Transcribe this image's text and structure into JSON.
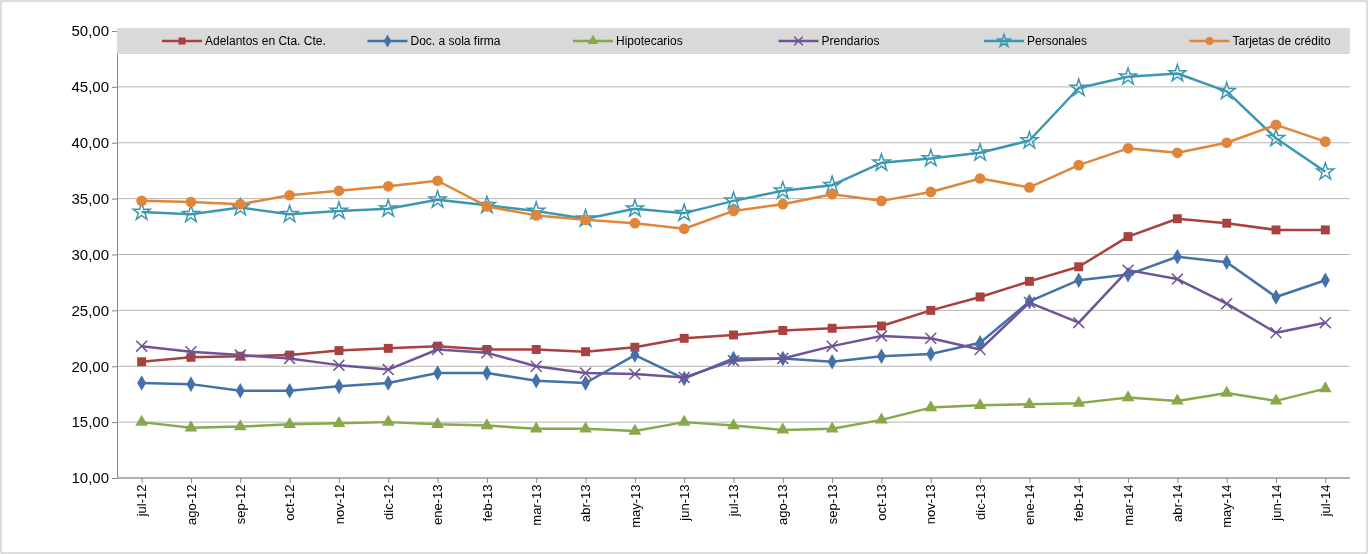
{
  "chart_data": {
    "type": "line",
    "categories": [
      "jul-12",
      "ago-12",
      "sep-12",
      "oct-12",
      "nov-12",
      "dic-12",
      "ene-13",
      "feb-13",
      "mar-13",
      "abr-13",
      "may-13",
      "jun-13",
      "jul-13",
      "ago-13",
      "sep-13",
      "oct-13",
      "nov-13",
      "dic-13",
      "ene-14",
      "feb-14",
      "mar-14",
      "abr-14",
      "may-14",
      "jun-14",
      "jul-14"
    ],
    "series": [
      {
        "name": "Adelantos en Cta. Cte.",
        "color": "#a9413f",
        "marker": "square",
        "values": [
          20.4,
          20.8,
          20.9,
          21.0,
          21.4,
          21.6,
          21.8,
          21.5,
          21.5,
          21.3,
          21.7,
          22.5,
          22.8,
          23.2,
          23.4,
          23.6,
          25.0,
          26.2,
          27.6,
          28.9,
          31.6,
          33.2,
          32.8,
          32.2,
          32.2
        ]
      },
      {
        "name": "Doc. a sola firma",
        "color": "#4472a8",
        "marker": "diamond",
        "values": [
          18.5,
          18.4,
          17.8,
          17.8,
          18.2,
          18.5,
          19.4,
          19.4,
          18.7,
          18.5,
          21.0,
          18.9,
          20.7,
          20.7,
          20.4,
          20.9,
          21.1,
          22.1,
          25.8,
          27.7,
          28.2,
          29.8,
          29.3,
          26.2,
          27.7
        ]
      },
      {
        "name": "Hipotecarios",
        "color": "#88a84c",
        "marker": "triangle",
        "values": [
          15.0,
          14.5,
          14.6,
          14.8,
          14.9,
          15.0,
          14.8,
          14.7,
          14.4,
          14.4,
          14.2,
          15.0,
          14.7,
          14.3,
          14.4,
          15.2,
          16.3,
          16.5,
          16.6,
          16.7,
          17.2,
          16.9,
          17.6,
          16.9,
          18.0
        ]
      },
      {
        "name": "Prendarios",
        "color": "#6f5595",
        "marker": "cross",
        "values": [
          21.8,
          21.3,
          21.0,
          20.7,
          20.1,
          19.7,
          21.5,
          21.2,
          20.0,
          19.4,
          19.3,
          19.0,
          20.5,
          20.7,
          21.8,
          22.7,
          22.5,
          21.5,
          25.7,
          23.9,
          28.6,
          27.8,
          25.6,
          23.0,
          23.9
        ]
      },
      {
        "name": "Personales",
        "color": "#3b98b0",
        "marker": "star",
        "values": [
          33.8,
          33.6,
          34.2,
          33.6,
          33.9,
          34.1,
          34.9,
          34.4,
          33.9,
          33.2,
          34.1,
          33.7,
          34.8,
          35.7,
          36.2,
          38.2,
          38.6,
          39.1,
          40.2,
          44.9,
          45.9,
          46.2,
          44.6,
          40.4,
          37.4
        ]
      },
      {
        "name": "Tarjetas de crédito",
        "color": "#e0863a",
        "marker": "circle",
        "values": [
          34.8,
          34.7,
          34.5,
          35.3,
          35.7,
          36.1,
          36.6,
          34.3,
          33.5,
          33.1,
          32.8,
          32.3,
          33.9,
          34.5,
          35.4,
          34.8,
          35.6,
          36.8,
          36.0,
          38.0,
          39.5,
          39.1,
          40.0,
          41.6,
          40.1
        ]
      }
    ],
    "ylim": [
      10,
      50
    ],
    "yticks": [
      {
        "value": 10,
        "label": "10,00"
      },
      {
        "value": 15,
        "label": "15,00"
      },
      {
        "value": 20,
        "label": "20,00"
      },
      {
        "value": 25,
        "label": "25,00"
      },
      {
        "value": 30,
        "label": "30,00"
      },
      {
        "value": 35,
        "label": "35,00"
      },
      {
        "value": 40,
        "label": "40,00"
      },
      {
        "value": 45,
        "label": "45,00"
      },
      {
        "value": 50,
        "label": "50,00"
      }
    ],
    "grid": "y",
    "legend": "top",
    "line_style": "solid"
  }
}
